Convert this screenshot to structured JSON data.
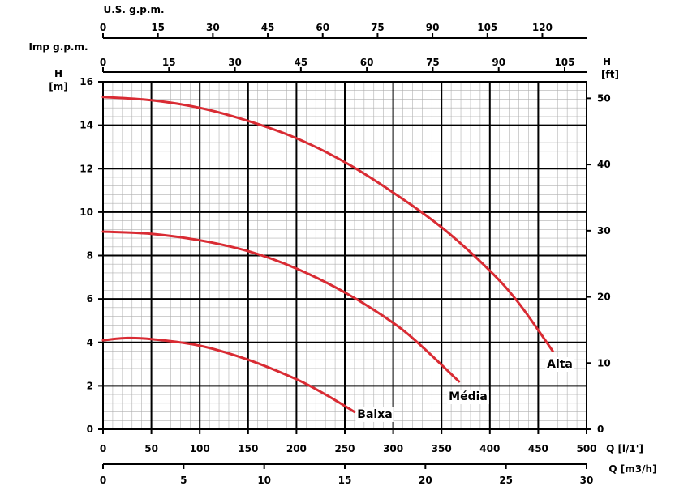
{
  "chart_data": {
    "type": "line",
    "x_axis": {
      "label": "Q [l/1']",
      "range": [
        0,
        500
      ],
      "ticks": [
        "0",
        "50",
        "100",
        "150",
        "200",
        "250",
        "300",
        "350",
        "400",
        "450",
        "500"
      ]
    },
    "x_axis_m3h": {
      "label": "Q [m3/h]",
      "range": [
        0,
        30
      ],
      "ticks": [
        "0",
        "5",
        "10",
        "15",
        "20",
        "25",
        "30"
      ]
    },
    "x_axis_usgpm": {
      "label": "U.S. g.p.m.",
      "ticks": [
        "0",
        "15",
        "30",
        "45",
        "60",
        "75",
        "90",
        "105",
        "120"
      ]
    },
    "x_axis_impgpm": {
      "label": "Imp g.p.m.",
      "ticks": [
        "0",
        "15",
        "30",
        "45",
        "60",
        "75",
        "90",
        "105"
      ]
    },
    "y_axis": {
      "label_top": "H",
      "label_unit": "[m]",
      "range": [
        0,
        16
      ],
      "ticks": [
        "0",
        "2",
        "4",
        "6",
        "8",
        "10",
        "12",
        "14",
        "16"
      ]
    },
    "y_axis_ft": {
      "label_top": "H",
      "label_unit": "[ft]",
      "ticks": [
        "0",
        "10",
        "20",
        "30",
        "40",
        "50"
      ]
    },
    "grid": true,
    "series": [
      {
        "name": "Alta",
        "color": "#d92b33",
        "x": [
          0,
          50,
          100,
          150,
          200,
          250,
          300,
          350,
          400,
          430,
          465
        ],
        "y": [
          15.3,
          15.15,
          14.8,
          14.2,
          13.4,
          12.3,
          10.9,
          9.3,
          7.3,
          5.8,
          3.6
        ]
      },
      {
        "name": "Média",
        "color": "#d92b33",
        "x": [
          0,
          50,
          100,
          150,
          200,
          250,
          300,
          330,
          368
        ],
        "y": [
          9.1,
          9.0,
          8.7,
          8.2,
          7.4,
          6.3,
          4.9,
          3.8,
          2.2
        ]
      },
      {
        "name": "Baixa",
        "color": "#d92b33",
        "x": [
          0,
          25,
          50,
          100,
          150,
          200,
          230,
          260
        ],
        "y": [
          4.1,
          4.2,
          4.15,
          3.85,
          3.2,
          2.3,
          1.6,
          0.8
        ]
      }
    ]
  }
}
